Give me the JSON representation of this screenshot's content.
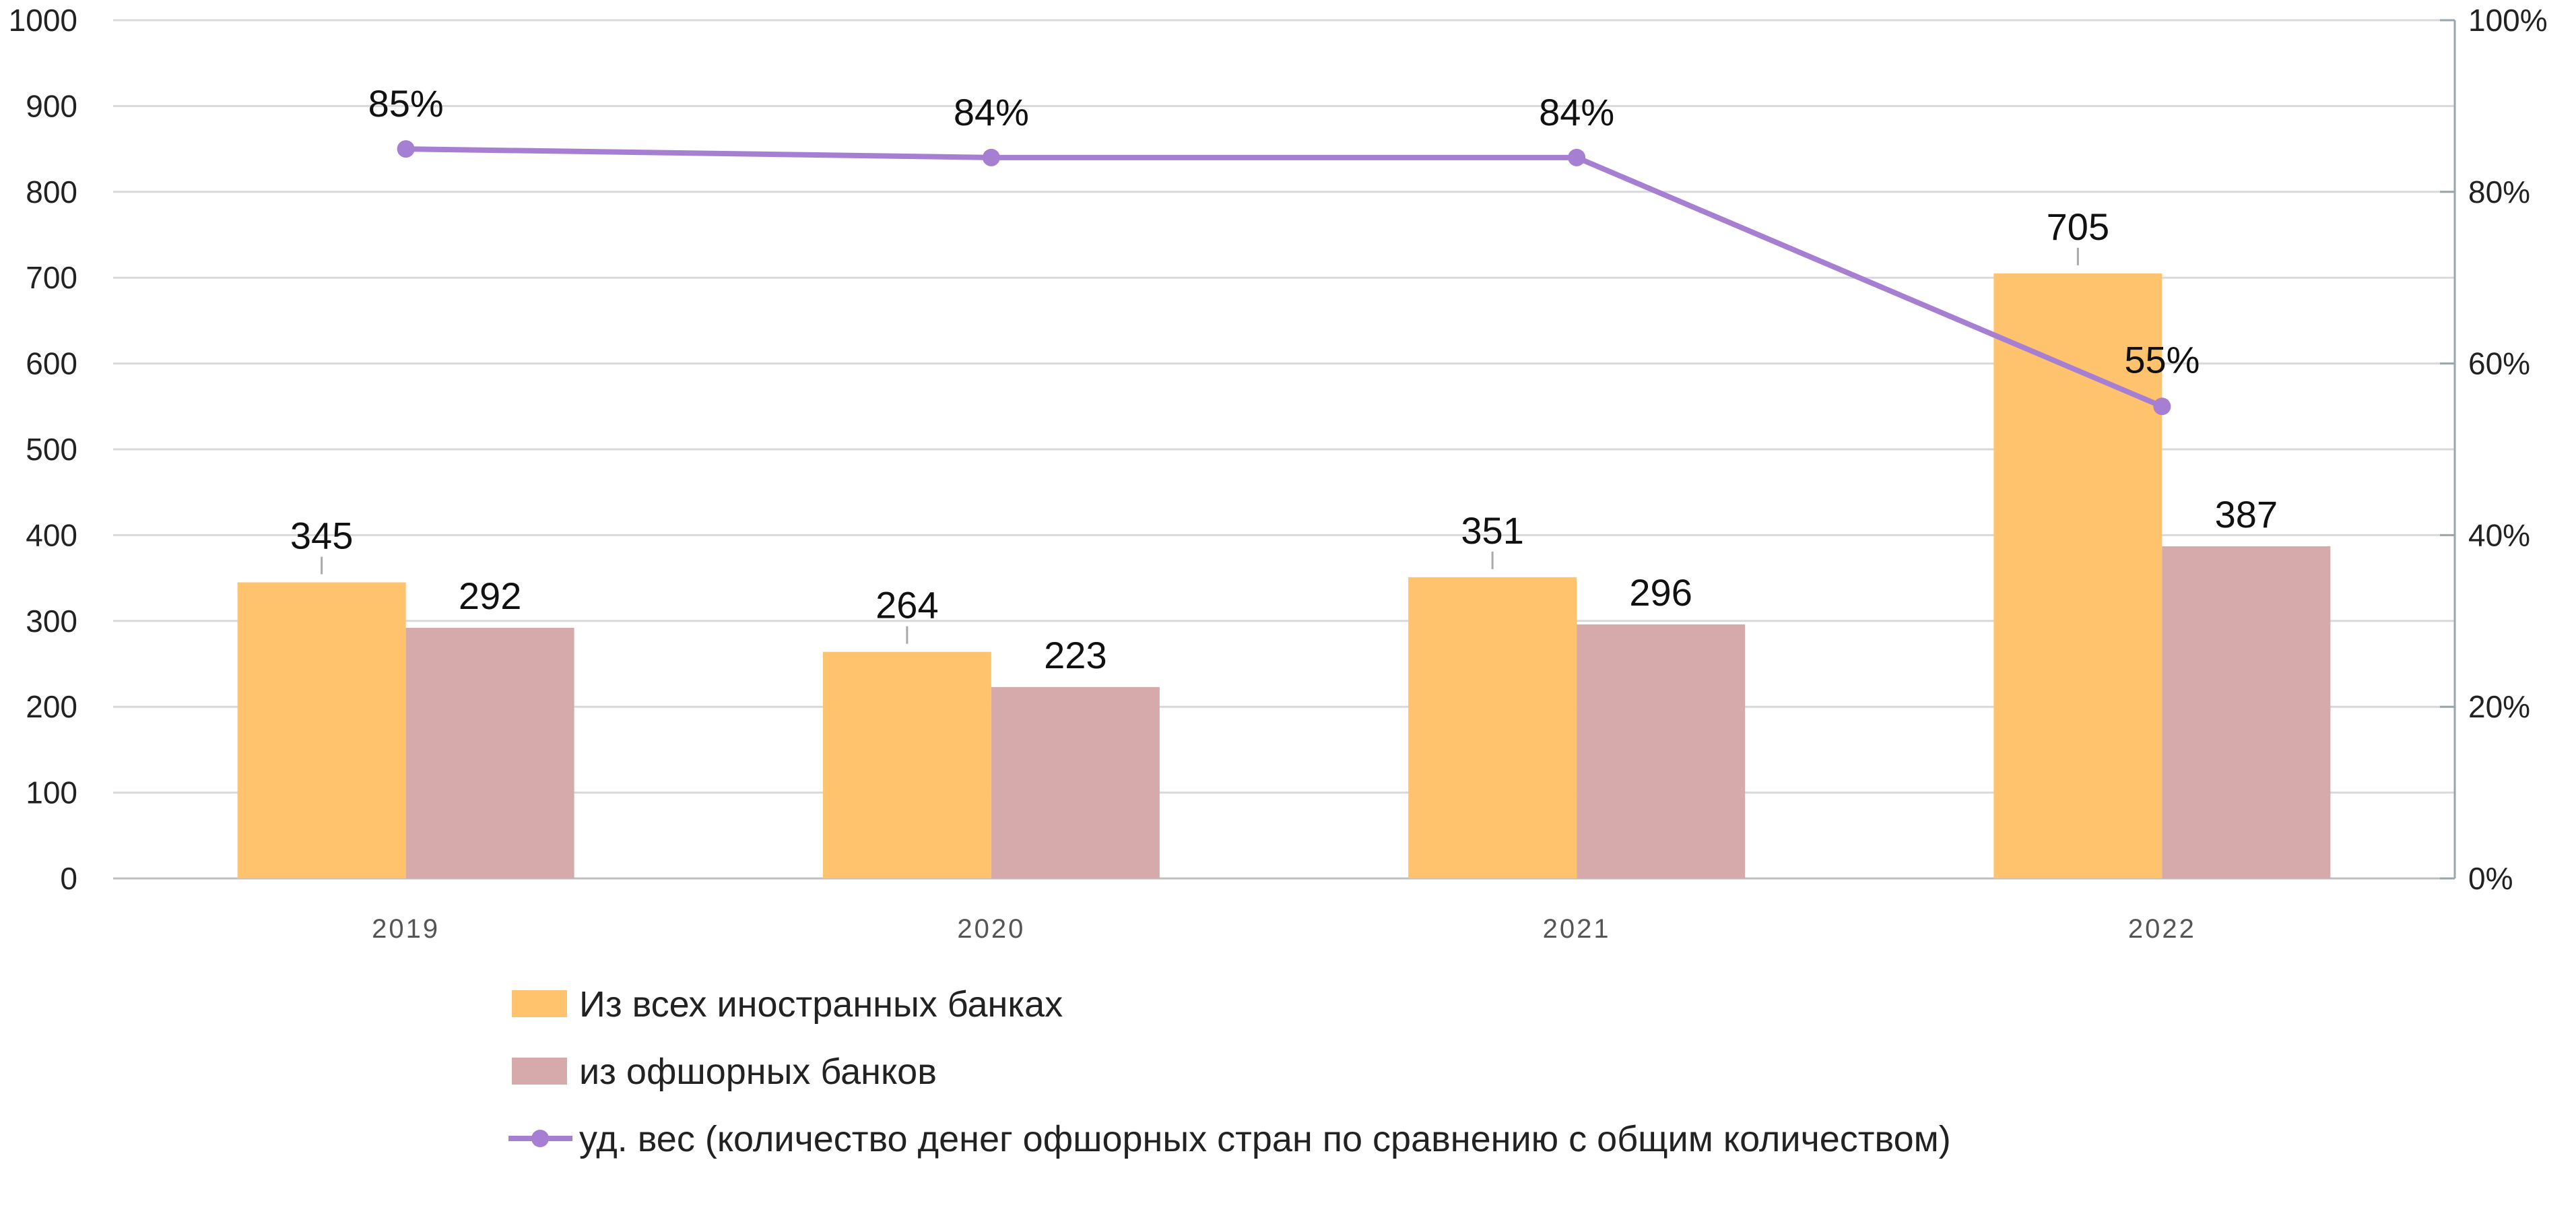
{
  "chart_data": {
    "type": "bar",
    "categories": [
      "2019",
      "2020",
      "2021",
      "2022"
    ],
    "series": [
      {
        "name": "Из всех иностранных банках",
        "type": "bar",
        "axis": "left",
        "color": "#FFC36E",
        "values": [
          345,
          264,
          351,
          705
        ],
        "labels": [
          "345",
          "264",
          "351",
          "705"
        ]
      },
      {
        "name": "из офшорных банков",
        "type": "bar",
        "axis": "left",
        "color": "#D6AAAA",
        "values": [
          292,
          223,
          296,
          387
        ],
        "labels": [
          "292",
          "223",
          "296",
          "387"
        ]
      },
      {
        "name": "уд. вес (количество денег офшорных стран по сравнению с общим количеством)",
        "type": "line",
        "axis": "right",
        "color": "#A67FD3",
        "values": [
          85,
          84,
          84,
          55
        ],
        "labels": [
          "85%",
          "84%",
          "84%",
          "55%"
        ]
      }
    ],
    "yaxis_left": {
      "ylim": [
        0,
        1000
      ],
      "ticks": [
        "0",
        "100",
        "200",
        "300",
        "400",
        "500",
        "600",
        "700",
        "800",
        "900",
        "1000"
      ]
    },
    "yaxis_right": {
      "ylim": [
        0,
        100
      ],
      "ticks": [
        "0%",
        "20%",
        "40%",
        "60%",
        "80%",
        "100%"
      ]
    },
    "grid": true,
    "legend_position": "bottom"
  }
}
